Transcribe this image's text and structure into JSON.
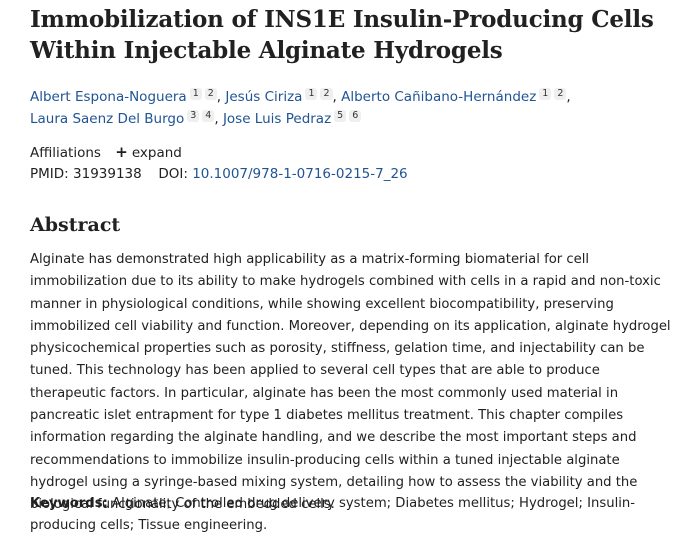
{
  "article": {
    "title": "Immobilization of INS1E Insulin-Producing Cells Within Injectable Alginate Hydrogels",
    "authors": [
      {
        "name": "Albert Espona-Noguera",
        "affils": [
          "1",
          "2"
        ]
      },
      {
        "name": "Jesús Ciriza",
        "affils": [
          "1",
          "2"
        ]
      },
      {
        "name": "Alberto Cañibano-Hernández",
        "affils": [
          "1",
          "2"
        ]
      },
      {
        "name": "Laura Saenz Del Burgo",
        "affils": [
          "3",
          "4"
        ]
      },
      {
        "name": "Jose Luis Pedraz",
        "affils": [
          "5",
          "6"
        ]
      }
    ],
    "affiliations_label": "Affiliations",
    "expand_label": "expand",
    "pmid_label": "PMID:",
    "pmid_value": "31939138",
    "doi_label": "DOI:",
    "doi_value": "10.1007/978-1-0716-0215-7_26",
    "abstract_heading": "Abstract",
    "abstract_text": "Alginate has demonstrated high applicability as a matrix-forming biomaterial for cell immobilization due to its ability to make hydrogels combined with cells in a rapid and non-toxic manner in physiological conditions, while showing excellent biocompatibility, preserving immobilized cell viability and function. Moreover, depending on its application, alginate hydrogel physicochemical properties such as porosity, stiffness, gelation time, and injectability can be tuned. This technology has been applied to several cell types that are able to produce therapeutic factors. In particular, alginate has been the most commonly used material in pancreatic islet entrapment for type 1 diabetes mellitus treatment. This chapter compiles information regarding the alginate handling, and we describe the most important steps and recommendations to immobilize insulin-producing cells within a tuned injectable alginate hydrogel using a syringe-based mixing system, detailing how to assess the viability and the biological functionality of the embedded cells.",
    "keywords_label": "Keywords:",
    "keywords_text": "Alginate; Controlled drug delivery system; Diabetes mellitus; Hydrogel; Insulin-producing cells; Tissue engineering."
  },
  "icons": {
    "expand": "plus-icon"
  },
  "colors": {
    "link": "#205493",
    "text": "#212121"
  }
}
